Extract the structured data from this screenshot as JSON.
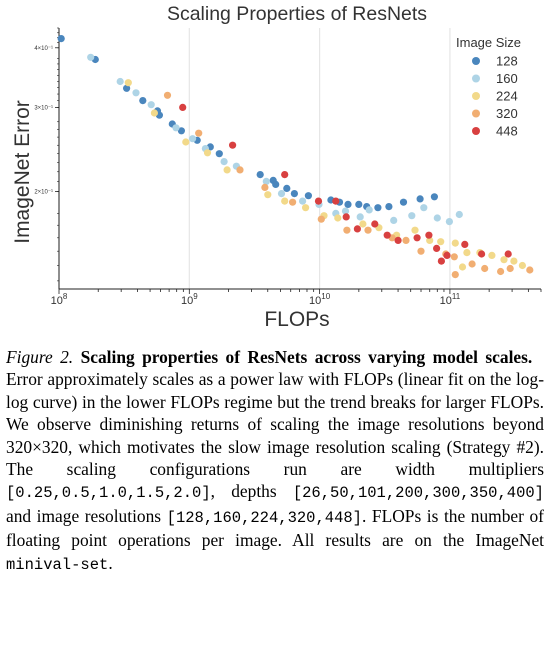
{
  "chart_data": {
    "type": "scatter",
    "title": "Scaling Properties of ResNets",
    "xlabel": "FLOPs",
    "ylabel": "ImageNet Error",
    "x_scale": "log",
    "y_scale": "log",
    "xlim": [
      100000000.0,
      500000000000.0
    ],
    "ylim": [
      0.125,
      0.44
    ],
    "x_ticks": [
      {
        "value": 100000000.0,
        "base": "10",
        "exp": "8"
      },
      {
        "value": 1000000000.0,
        "base": "10",
        "exp": "9"
      },
      {
        "value": 10000000000.0,
        "base": "10",
        "exp": "10"
      },
      {
        "value": 100000000000.0,
        "base": "10",
        "exp": "11"
      }
    ],
    "y_ticks": [
      {
        "value": 0.2,
        "label": "2×10⁻¹"
      },
      {
        "value": 0.3,
        "label": "3×10⁻¹"
      },
      {
        "value": 0.4,
        "label": "4×10⁻¹"
      }
    ],
    "grid": true,
    "legend": {
      "title": "Image Size",
      "position": "top-right"
    },
    "series": [
      {
        "name": "128",
        "color": "#4a86bd",
        "points": [
          [
            104000000.0,
            0.418
          ],
          [
            190000000.0,
            0.378
          ],
          [
            330000000.0,
            0.329
          ],
          [
            440000000.0,
            0.31
          ],
          [
            570000000.0,
            0.295
          ],
          [
            590000000.0,
            0.289
          ],
          [
            740000000.0,
            0.277
          ],
          [
            870000000.0,
            0.268
          ],
          [
            1150000000.0,
            0.256
          ],
          [
            1450000000.0,
            0.248
          ],
          [
            1700000000.0,
            0.24
          ],
          [
            3500000000.0,
            0.217
          ],
          [
            4400000000.0,
            0.211
          ],
          [
            4600000000.0,
            0.207
          ],
          [
            5600000000.0,
            0.203
          ],
          [
            6400000000.0,
            0.198
          ],
          [
            8200000000.0,
            0.196
          ],
          [
            12200000000.0,
            0.192
          ],
          [
            14200000000.0,
            0.19
          ],
          [
            16500000000.0,
            0.188
          ],
          [
            20000000000.0,
            0.188
          ],
          [
            23000000000.0,
            0.186
          ],
          [
            28000000000.0,
            0.185
          ],
          [
            34000000000.0,
            0.186
          ],
          [
            44000000000.0,
            0.19
          ],
          [
            59000000000.0,
            0.193
          ],
          [
            76000000000.0,
            0.195
          ]
        ]
      },
      {
        "name": "160",
        "color": "#aed4e6",
        "points": [
          [
            175000000.0,
            0.382
          ],
          [
            295000000.0,
            0.34
          ],
          [
            390000000.0,
            0.322
          ],
          [
            510000000.0,
            0.304
          ],
          [
            790000000.0,
            0.272
          ],
          [
            1060000000.0,
            0.258
          ],
          [
            1330000000.0,
            0.246
          ],
          [
            1850000000.0,
            0.231
          ],
          [
            2300000000.0,
            0.226
          ],
          [
            3900000000.0,
            0.21
          ],
          [
            5100000000.0,
            0.198
          ],
          [
            7400000000.0,
            0.191
          ],
          [
            9900000000.0,
            0.188
          ],
          [
            13300000000.0,
            0.18
          ],
          [
            15800000000.0,
            0.182
          ],
          [
            20500000000.0,
            0.177
          ],
          [
            24000000000.0,
            0.183
          ],
          [
            37000000000.0,
            0.174
          ],
          [
            51000000000.0,
            0.178
          ],
          [
            63000000000.0,
            0.185
          ],
          [
            80000000000.0,
            0.176
          ],
          [
            99000000000.0,
            0.173
          ],
          [
            118000000000.0,
            0.179
          ]
        ]
      },
      {
        "name": "224",
        "color": "#f2d98a",
        "points": [
          [
            340000000.0,
            0.338
          ],
          [
            540000000.0,
            0.292
          ],
          [
            940000000.0,
            0.254
          ],
          [
            1380000000.0,
            0.241
          ],
          [
            1950000000.0,
            0.222
          ],
          [
            4000000000.0,
            0.197
          ],
          [
            5400000000.0,
            0.191
          ],
          [
            7800000000.0,
            0.185
          ],
          [
            10800000000.0,
            0.178
          ],
          [
            13800000000.0,
            0.176
          ],
          [
            21500000000.0,
            0.171
          ],
          [
            28500000000.0,
            0.168
          ],
          [
            39000000000.0,
            0.162
          ],
          [
            54000000000.0,
            0.166
          ],
          [
            70000000000.0,
            0.158
          ],
          [
            85000000000.0,
            0.157
          ],
          [
            110000000000.0,
            0.156
          ],
          [
            135000000000.0,
            0.149
          ],
          [
            170000000000.0,
            0.149
          ],
          [
            210000000000.0,
            0.147
          ],
          [
            260000000000.0,
            0.144
          ],
          [
            310000000000.0,
            0.143
          ],
          [
            360000000000.0,
            0.14
          ],
          [
            125000000000.0,
            0.139
          ]
        ]
      },
      {
        "name": "320",
        "color": "#f1ae72",
        "points": [
          [
            680000000.0,
            0.318
          ],
          [
            1180000000.0,
            0.265
          ],
          [
            2450000000.0,
            0.222
          ],
          [
            3800000000.0,
            0.204
          ],
          [
            6200000000.0,
            0.19
          ],
          [
            10300000000.0,
            0.175
          ],
          [
            16200000000.0,
            0.166
          ],
          [
            23500000000.0,
            0.166
          ],
          [
            36000000000.0,
            0.16
          ],
          [
            46000000000.0,
            0.158
          ],
          [
            60000000000.0,
            0.15
          ],
          [
            93000000000.0,
            0.148
          ],
          [
            108000000000.0,
            0.146
          ],
          [
            148000000000.0,
            0.141
          ],
          [
            185000000000.0,
            0.138
          ],
          [
            245000000000.0,
            0.136
          ],
          [
            290000000000.0,
            0.138
          ],
          [
            410000000000.0,
            0.137
          ],
          [
            110000000000.0,
            0.134
          ]
        ]
      },
      {
        "name": "448",
        "color": "#d84040",
        "points": [
          [
            890000000.0,
            0.3
          ],
          [
            2150000000.0,
            0.25
          ],
          [
            5400000000.0,
            0.217
          ],
          [
            9800000000.0,
            0.191
          ],
          [
            13300000000.0,
            0.191
          ],
          [
            16000000000.0,
            0.177
          ],
          [
            19500000000.0,
            0.167
          ],
          [
            26500000000.0,
            0.171
          ],
          [
            33000000000.0,
            0.162
          ],
          [
            40000000000.0,
            0.158
          ],
          [
            56000000000.0,
            0.16
          ],
          [
            69000000000.0,
            0.162
          ],
          [
            79000000000.0,
            0.152
          ],
          [
            95000000000.0,
            0.147
          ],
          [
            130000000000.0,
            0.155
          ],
          [
            175000000000.0,
            0.148
          ],
          [
            280000000000.0,
            0.148
          ],
          [
            86000000000.0,
            0.143
          ]
        ]
      }
    ]
  },
  "caption": {
    "label": "Figure 2.",
    "title": "Scaling properties of ResNets across varying model scales.",
    "body_1": "Error approximately scales as a power law with FLOPs (linear fit on the log-log curve) in the lower FLOPs regime but the trend breaks for larger FLOPs. We observe diminishing returns of scaling the image resolutions beyond 320×320, which motivates the slow image resolution scaling (Strategy #2). The scaling configurations run are width multipliers",
    "widths": "[0.25,0.5,1.0,1.5,2.0]",
    "text_depths": ", depths",
    "depths": "[26,50,101,200,300,350,400]",
    "text_resolutions": "and image resolutions",
    "resolutions": "[128,160,224,320,448]",
    "body_2": ". FLOPs is the number of floating point operations per image. All results are on the ImageNet",
    "set_name": "minival-set",
    "end": "."
  }
}
